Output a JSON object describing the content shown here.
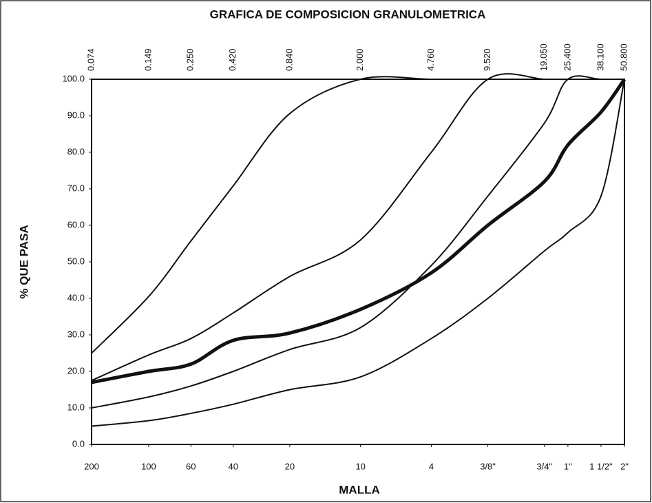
{
  "chart_data": {
    "type": "line",
    "title": "GRAFICA DE COMPOSICION GRANULOMETRICA",
    "xlabel": "MALLA",
    "ylabel": "% QUE PASA",
    "xscale": "log",
    "x": [
      0.074,
      0.149,
      0.25,
      0.42,
      0.84,
      2.0,
      4.76,
      9.52,
      19.05,
      25.4,
      38.1,
      50.8
    ],
    "xlim": [
      0.074,
      50.8
    ],
    "ylim": [
      0,
      100
    ],
    "xticks": [
      {
        "value": 0.074,
        "label": "200"
      },
      {
        "value": 0.149,
        "label": "100"
      },
      {
        "value": 0.25,
        "label": "60"
      },
      {
        "value": 0.42,
        "label": "40"
      },
      {
        "value": 0.84,
        "label": "20"
      },
      {
        "value": 2.0,
        "label": "10"
      },
      {
        "value": 4.76,
        "label": "4"
      },
      {
        "value": 9.52,
        "label": "3/8\""
      },
      {
        "value": 19.05,
        "label": "3/4\""
      },
      {
        "value": 25.4,
        "label": "1\""
      },
      {
        "value": 38.1,
        "label": "1 1/2\""
      },
      {
        "value": 50.8,
        "label": "2\""
      }
    ],
    "xticks_top": [
      {
        "value": 0.074,
        "label": "0.074"
      },
      {
        "value": 0.149,
        "label": "0.149"
      },
      {
        "value": 0.25,
        "label": "0.250"
      },
      {
        "value": 0.42,
        "label": "0.420"
      },
      {
        "value": 0.84,
        "label": "0.840"
      },
      {
        "value": 2.0,
        "label": "2.000"
      },
      {
        "value": 4.76,
        "label": "4.760"
      },
      {
        "value": 9.52,
        "label": "9.520"
      },
      {
        "value": 19.05,
        "label": "19.050"
      },
      {
        "value": 25.4,
        "label": "25.400"
      },
      {
        "value": 38.1,
        "label": "38.100"
      },
      {
        "value": 50.8,
        "label": "50.800"
      }
    ],
    "yticks": [
      {
        "value": 0,
        "label": "0.0"
      },
      {
        "value": 10,
        "label": "10.0"
      },
      {
        "value": 20,
        "label": "20.0"
      },
      {
        "value": 30,
        "label": "30.0"
      },
      {
        "value": 40,
        "label": "40.0"
      },
      {
        "value": 50,
        "label": "50.0"
      },
      {
        "value": 60,
        "label": "60.0"
      },
      {
        "value": 70,
        "label": "70.0"
      },
      {
        "value": 80,
        "label": "80.0"
      },
      {
        "value": 90,
        "label": "90.0"
      },
      {
        "value": 100,
        "label": "100.0"
      }
    ],
    "series": [
      {
        "color": "#111111",
        "width": 2,
        "values": [
          25,
          40.5,
          55.7,
          70.8,
          90.6,
          100,
          100,
          100,
          100,
          100,
          100,
          100
        ]
      },
      {
        "color": "#111111",
        "width": 2,
        "values": [
          17.5,
          24.5,
          29,
          36,
          46,
          56,
          80,
          100,
          100,
          100,
          100,
          100
        ]
      },
      {
        "color": "#111111",
        "width": 2,
        "values": [
          10,
          13,
          16,
          20,
          26,
          32,
          49,
          68,
          88,
          100,
          100,
          100
        ]
      },
      {
        "color": "#111111",
        "width": 2,
        "values": [
          5,
          6.5,
          8.5,
          11,
          15,
          18.5,
          29,
          40,
          53,
          58,
          68,
          100
        ]
      },
      {
        "color": "#111111",
        "width": 5,
        "values": [
          17,
          20,
          22,
          28.5,
          30.5,
          37,
          47,
          60,
          72,
          82,
          91,
          100
        ]
      }
    ]
  }
}
